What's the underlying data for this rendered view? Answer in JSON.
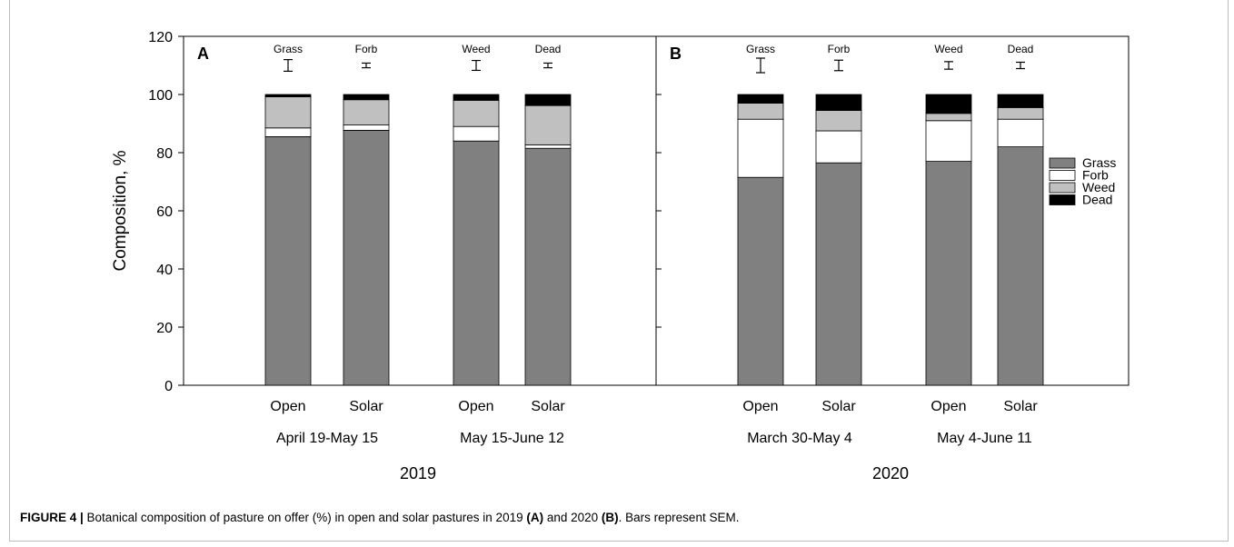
{
  "chart_data": {
    "type": "bar",
    "stacked": true,
    "ylabel": "Composition, %",
    "ylim": [
      0,
      120
    ],
    "yticks": [
      0,
      20,
      40,
      60,
      80,
      100,
      120
    ],
    "series_names": [
      "Grass",
      "Forb",
      "Weed",
      "Dead"
    ],
    "colors": {
      "Grass": "#808080",
      "Forb": "#ffffff",
      "Weed": "#c0c0c0",
      "Dead": "#000000"
    },
    "legend_position": "right",
    "panels": [
      {
        "label": "A",
        "year": "2019",
        "periods": [
          "April 19-May 15",
          "May 15-June 12"
        ],
        "bars": [
          {
            "period": 0,
            "treatment": "Open",
            "values": {
              "Grass": 85.5,
              "Forb": 3.0,
              "Weed": 10.7,
              "Dead": 0.8
            }
          },
          {
            "period": 0,
            "treatment": "Solar",
            "values": {
              "Grass": 87.7,
              "Forb": 1.8,
              "Weed": 8.7,
              "Dead": 1.8
            }
          },
          {
            "period": 1,
            "treatment": "Open",
            "values": {
              "Grass": 84.0,
              "Forb": 5.0,
              "Weed": 9.0,
              "Dead": 2.0
            }
          },
          {
            "period": 1,
            "treatment": "Solar",
            "values": {
              "Grass": 81.5,
              "Forb": 1.2,
              "Weed": 13.5,
              "Dead": 3.8
            }
          }
        ],
        "sem": [
          {
            "label": "Grass",
            "center": 110,
            "half": 2.0
          },
          {
            "label": "Forb",
            "center": 110,
            "half": 0.8
          },
          {
            "label": "Weed",
            "center": 110,
            "half": 1.7
          },
          {
            "label": "Dead",
            "center": 110,
            "half": 0.8
          }
        ]
      },
      {
        "label": "B",
        "year": "2020",
        "periods": [
          "March 30-May 4",
          "May 4-June 11"
        ],
        "bars": [
          {
            "period": 0,
            "treatment": "Open",
            "values": {
              "Grass": 71.5,
              "Forb": 20.0,
              "Weed": 5.5,
              "Dead": 3.0
            }
          },
          {
            "period": 0,
            "treatment": "Solar",
            "values": {
              "Grass": 76.5,
              "Forb": 11.0,
              "Weed": 7.0,
              "Dead": 5.5
            }
          },
          {
            "period": 1,
            "treatment": "Open",
            "values": {
              "Grass": 77.0,
              "Forb": 14.0,
              "Weed": 2.5,
              "Dead": 6.5
            }
          },
          {
            "period": 1,
            "treatment": "Solar",
            "values": {
              "Grass": 82.0,
              "Forb": 9.5,
              "Weed": 4.0,
              "Dead": 4.5
            }
          }
        ],
        "sem": [
          {
            "label": "Grass",
            "center": 110,
            "half": 2.5
          },
          {
            "label": "Forb",
            "center": 110,
            "half": 1.8
          },
          {
            "label": "Weed",
            "center": 110,
            "half": 1.3
          },
          {
            "label": "Dead",
            "center": 110,
            "half": 1.1
          }
        ]
      }
    ]
  },
  "caption": {
    "figure_label": "FIGURE 4 |",
    "text_1": " Botanical composition of pasture on offer (%) in open and solar pastures in 2019 ",
    "ref_a": "(A)",
    "text_2": " and 2020 ",
    "ref_b": "(B)",
    "text_3": ". Bars represent SEM."
  }
}
